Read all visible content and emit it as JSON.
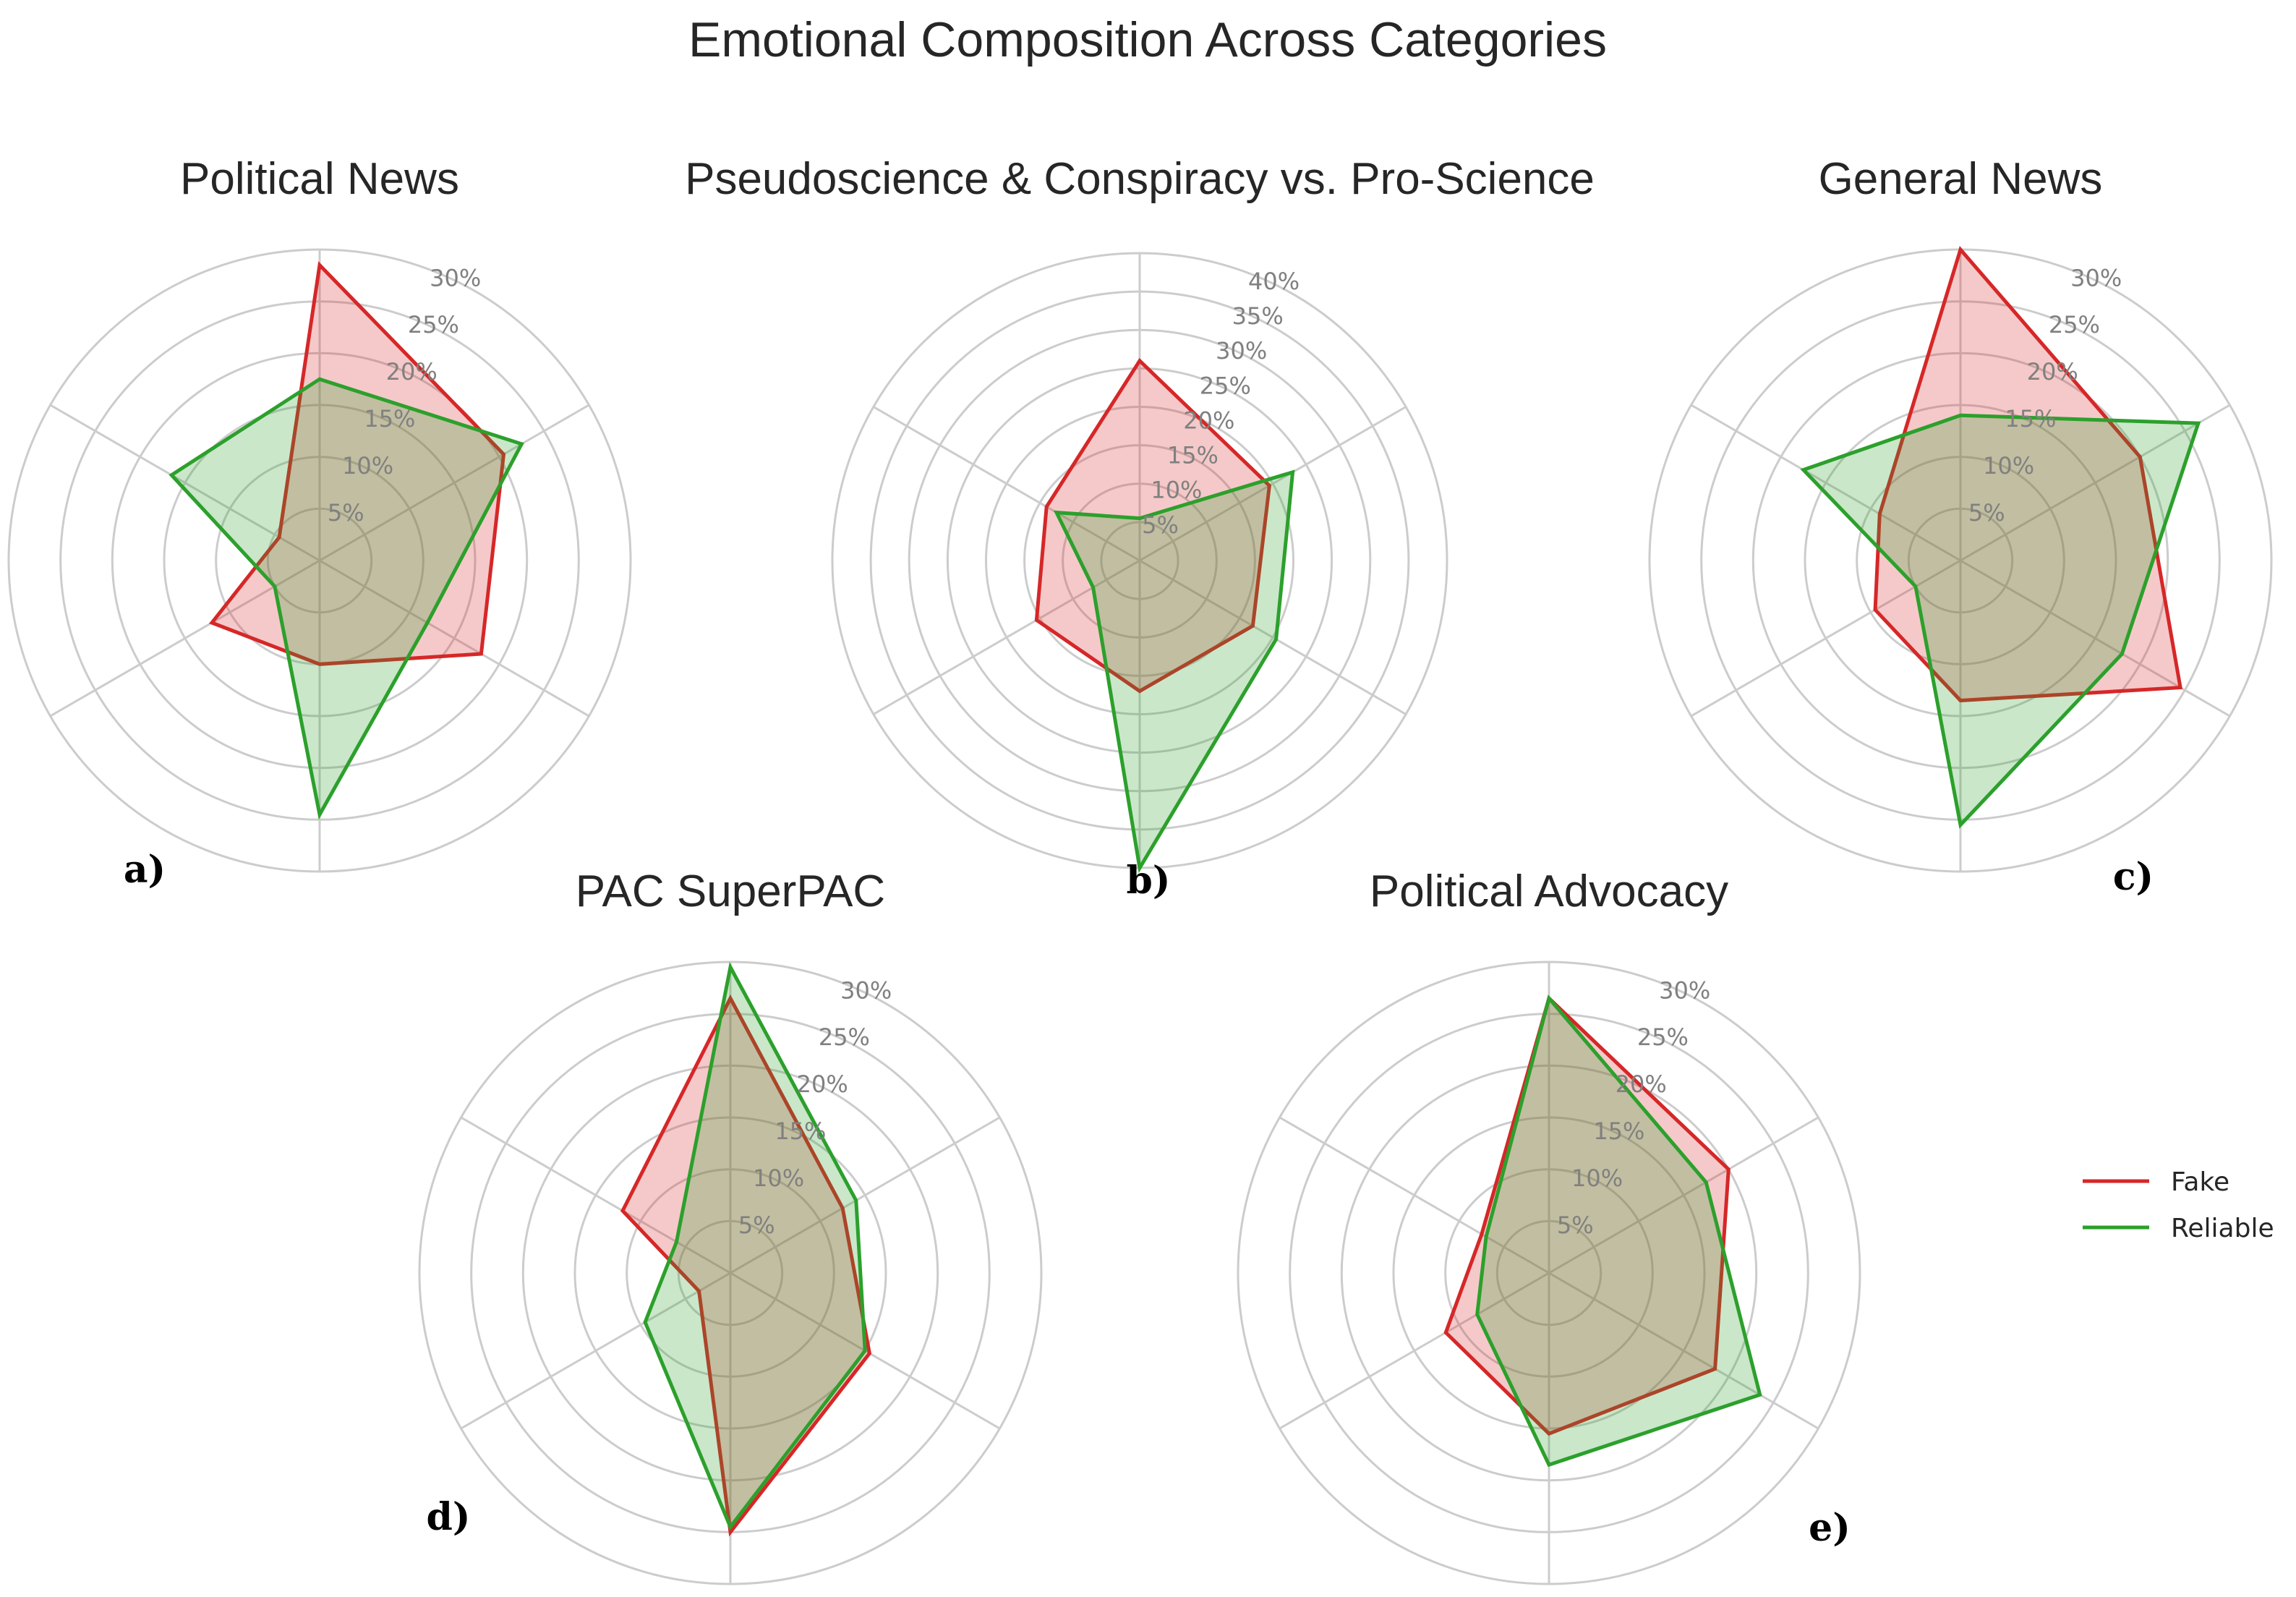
{
  "figure_title": "Emotional Composition Across Categories",
  "colors": {
    "fake": "#d62728",
    "reliable": "#2ca02c",
    "grid": "#cccccc",
    "tick": "#808080"
  },
  "chart_data": [
    {
      "type": "radar",
      "panel": "a)",
      "title": "Political News",
      "rmax": 30,
      "ticks": [
        "5%",
        "10%",
        "15%",
        "20%",
        "25%",
        "30%"
      ],
      "axes": 6,
      "legend": "right",
      "series": [
        {
          "name": "Fake",
          "values": [
            28.5,
            20.5,
            18.0,
            10.0,
            12.0,
            4.5
          ]
        },
        {
          "name": "Reliable",
          "values": [
            17.5,
            22.5,
            12.0,
            24.5,
            5.0,
            16.5
          ]
        }
      ]
    },
    {
      "type": "radar",
      "panel": "b)",
      "title": "Pseudoscience & Conspiracy vs. Pro-Science",
      "rmax": 40,
      "ticks": [
        "5%",
        "10%",
        "15%",
        "20%",
        "25%",
        "30%",
        "35%",
        "40%"
      ],
      "axes": 6,
      "series": [
        {
          "name": "Fake",
          "values": [
            26.0,
            19.5,
            17.0,
            17.0,
            15.5,
            14.0
          ]
        },
        {
          "name": "Reliable",
          "values": [
            5.5,
            23.0,
            20.5,
            40.0,
            7.0,
            12.5
          ]
        }
      ]
    },
    {
      "type": "radar",
      "panel": "c)",
      "title": "General News",
      "rmax": 30,
      "ticks": [
        "5%",
        "10%",
        "15%",
        "20%",
        "25%",
        "30%"
      ],
      "axes": 6,
      "series": [
        {
          "name": "Fake",
          "values": [
            30.0,
            20.0,
            24.5,
            13.5,
            9.5,
            9.0
          ]
        },
        {
          "name": "Reliable",
          "values": [
            14.0,
            26.5,
            18.0,
            25.5,
            5.0,
            17.5
          ]
        }
      ]
    },
    {
      "type": "radar",
      "panel": "d)",
      "title": "PAC SuperPAC",
      "rmax": 30,
      "ticks": [
        "5%",
        "10%",
        "15%",
        "20%",
        "25%",
        "30%"
      ],
      "axes": 6,
      "series": [
        {
          "name": "Fake",
          "values": [
            26.5,
            12.5,
            15.5,
            25.0,
            3.5,
            12.0
          ]
        },
        {
          "name": "Reliable",
          "values": [
            29.5,
            14.0,
            15.0,
            24.5,
            9.5,
            6.0
          ]
        }
      ]
    },
    {
      "type": "radar",
      "panel": "e)",
      "title": "Political Advocacy",
      "rmax": 30,
      "ticks": [
        "5%",
        "10%",
        "15%",
        "20%",
        "25%",
        "30%"
      ],
      "axes": 6,
      "series": [
        {
          "name": "Fake",
          "values": [
            26.5,
            20.0,
            18.5,
            15.5,
            11.5,
            7.5
          ]
        },
        {
          "name": "Reliable",
          "values": [
            26.5,
            17.5,
            23.5,
            18.5,
            8.0,
            7.0
          ]
        }
      ]
    }
  ],
  "legend": {
    "items": [
      "Fake",
      "Reliable"
    ]
  }
}
